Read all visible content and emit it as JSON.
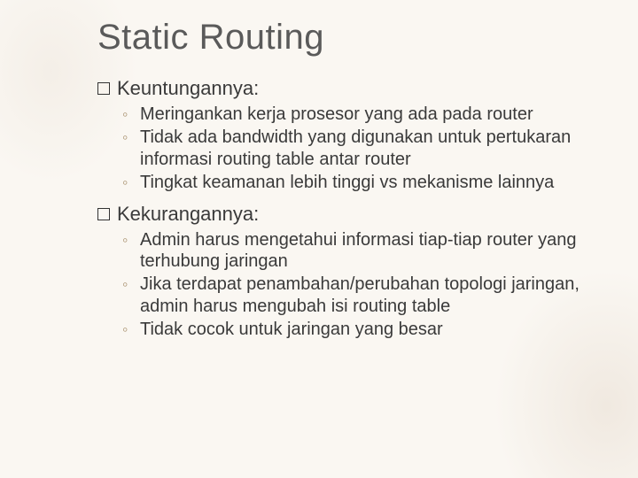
{
  "title": "Static Routing",
  "sections": [
    {
      "heading": "Keuntungannya:",
      "items": [
        "Meringankan kerja prosesor yang ada pada router",
        "Tidak ada bandwidth yang digunakan untuk pertukaran informasi routing table antar router",
        "Tingkat keamanan lebih tinggi vs mekanisme lainnya"
      ]
    },
    {
      "heading": "Kekurangannya:",
      "items": [
        "Admin harus mengetahui informasi tiap-tiap router yang terhubung jaringan",
        "Jika terdapat penambahan/perubahan topologi jaringan, admin harus mengubah isi routing table",
        "Tidak cocok untuk jaringan yang besar"
      ]
    }
  ],
  "colors": {
    "background": "#faf7f2",
    "title_color": "#5a5a5a",
    "text_color": "#3a3a3a",
    "sub_bullet_color": "#a8916f"
  },
  "typography": {
    "title_fontsize": 40,
    "level1_fontsize": 22,
    "level2_fontsize": 20,
    "font_family": "Arial"
  }
}
